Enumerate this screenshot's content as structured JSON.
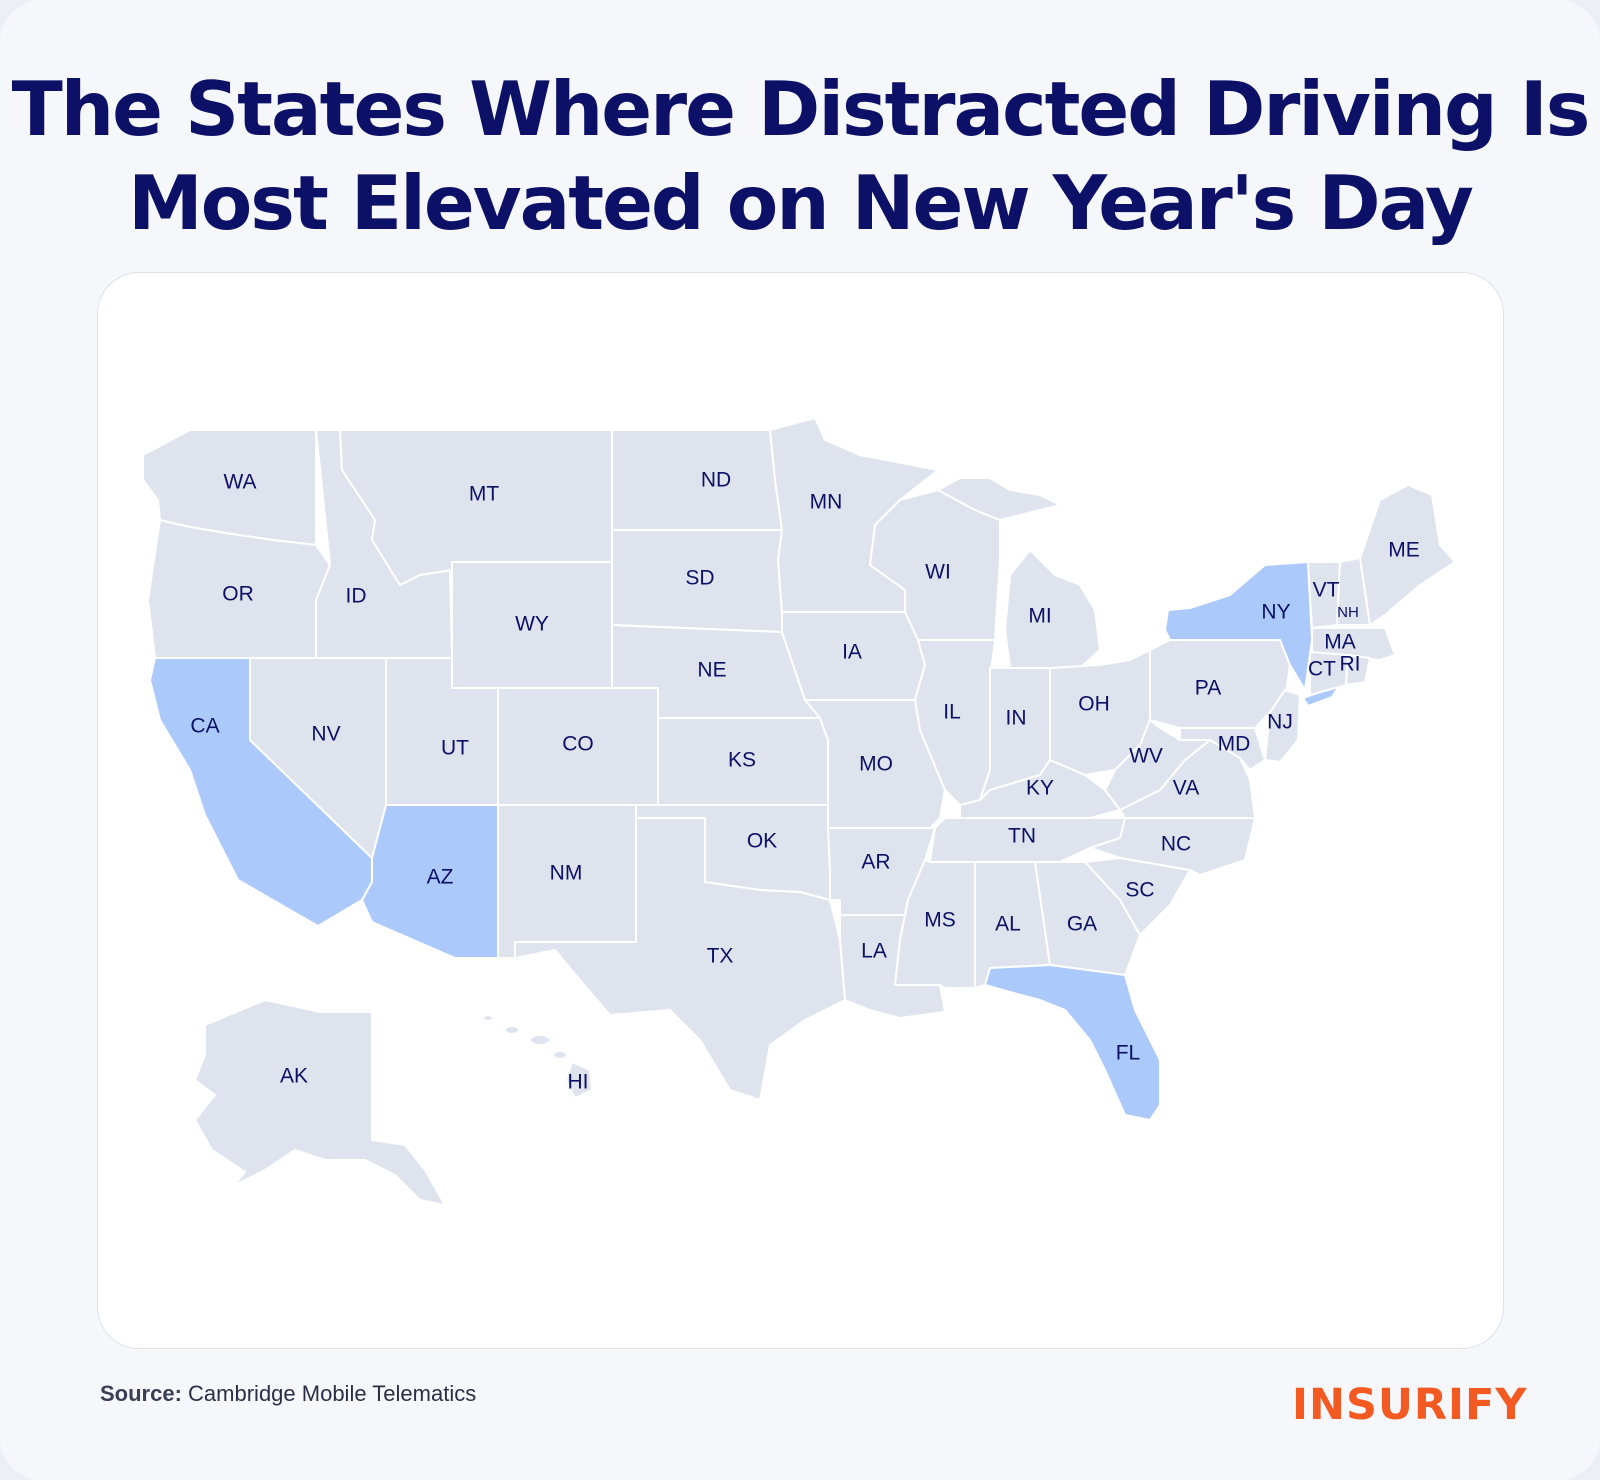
{
  "title": {
    "line1": "The States Where Distracted Driving Is",
    "line2": "Most Elevated on New Year's Day"
  },
  "map": {
    "highlighted_states": [
      "CA",
      "AZ",
      "NY",
      "FL"
    ],
    "colors": {
      "base": "#dfe3ed",
      "highlight": "#acc9fb",
      "border": "#ffffff",
      "label": "#0c1066"
    },
    "labels": {
      "WA": "WA",
      "OR": "OR",
      "CA": "CA",
      "ID": "ID",
      "NV": "NV",
      "MT": "MT",
      "WY": "WY",
      "UT": "UT",
      "CO": "CO",
      "AZ": "AZ",
      "NM": "NM",
      "ND": "ND",
      "SD": "SD",
      "NE": "NE",
      "KS": "KS",
      "OK": "OK",
      "TX": "TX",
      "MN": "MN",
      "IA": "IA",
      "MO": "MO",
      "AR": "AR",
      "LA": "LA",
      "WI": "WI",
      "IL": "IL",
      "MI": "MI",
      "IN": "IN",
      "OH": "OH",
      "KY": "KY",
      "TN": "TN",
      "MS": "MS",
      "AL": "AL",
      "GA": "GA",
      "FL": "FL",
      "SC": "SC",
      "NC": "NC",
      "VA": "VA",
      "WV": "WV",
      "MD": "MD",
      "PA": "PA",
      "NJ": "NJ",
      "NY": "NY",
      "CT": "CT",
      "RI": "RI",
      "MA": "MA",
      "VT": "VT",
      "NH": "NH",
      "ME": "ME",
      "AK": "AK",
      "HI": "HI"
    }
  },
  "source": {
    "label": "Source:",
    "text": "Cambridge Mobile Telematics"
  },
  "logo": {
    "text": "INSURIFY",
    "color": "#f25a22"
  }
}
